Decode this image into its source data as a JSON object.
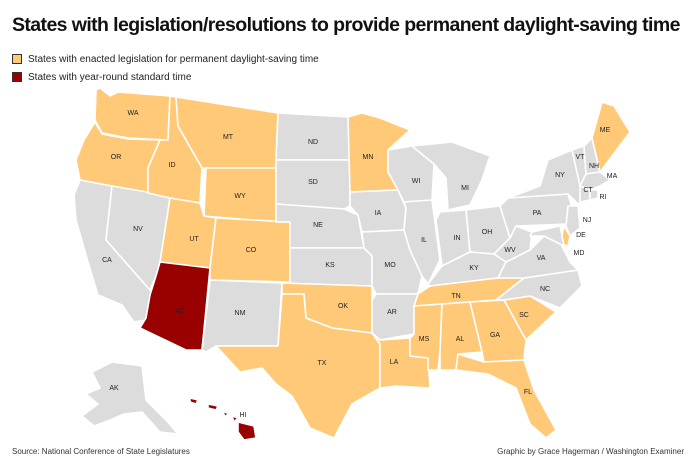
{
  "title": "States with legislation/resolutions to provide permanent daylight-saving time",
  "legend": [
    {
      "label": "States with enacted legislation for permanent daylight-saving time",
      "color": "#FFC978"
    },
    {
      "label": "States with year-round standard time",
      "color": "#990000"
    }
  ],
  "colors": {
    "dst": "#FFC978",
    "standard": "#990000",
    "other": "#DCDCDC"
  },
  "states": {
    "WA": {
      "label": "WA",
      "status": "dst"
    },
    "OR": {
      "label": "OR",
      "status": "dst"
    },
    "CA": {
      "label": "CA",
      "status": "other"
    },
    "NV": {
      "label": "NV",
      "status": "other"
    },
    "ID": {
      "label": "ID",
      "status": "dst"
    },
    "MT": {
      "label": "MT",
      "status": "dst"
    },
    "WY": {
      "label": "WY",
      "status": "dst"
    },
    "UT": {
      "label": "UT",
      "status": "dst"
    },
    "CO": {
      "label": "CO",
      "status": "dst"
    },
    "AZ": {
      "label": "AZ",
      "status": "standard"
    },
    "NM": {
      "label": "NM",
      "status": "other"
    },
    "ND": {
      "label": "ND",
      "status": "other"
    },
    "SD": {
      "label": "SD",
      "status": "other"
    },
    "NE": {
      "label": "NE",
      "status": "other"
    },
    "KS": {
      "label": "KS",
      "status": "other"
    },
    "OK": {
      "label": "OK",
      "status": "dst"
    },
    "TX": {
      "label": "TX",
      "status": "dst"
    },
    "MN": {
      "label": "MN",
      "status": "dst"
    },
    "IA": {
      "label": "IA",
      "status": "other"
    },
    "MO": {
      "label": "MO",
      "status": "other"
    },
    "AR": {
      "label": "AR",
      "status": "other"
    },
    "LA": {
      "label": "LA",
      "status": "dst"
    },
    "WI": {
      "label": "WI",
      "status": "other"
    },
    "IL": {
      "label": "IL",
      "status": "other"
    },
    "MI": {
      "label": "MI",
      "status": "other"
    },
    "IN": {
      "label": "IN",
      "status": "other"
    },
    "OH": {
      "label": "OH",
      "status": "other"
    },
    "KY": {
      "label": "KY",
      "status": "other"
    },
    "TN": {
      "label": "TN",
      "status": "dst"
    },
    "MS": {
      "label": "MS",
      "status": "dst"
    },
    "AL": {
      "label": "AL",
      "status": "dst"
    },
    "GA": {
      "label": "GA",
      "status": "dst"
    },
    "FL": {
      "label": "FL",
      "status": "dst"
    },
    "SC": {
      "label": "SC",
      "status": "dst"
    },
    "NC": {
      "label": "NC",
      "status": "other"
    },
    "VA": {
      "label": "VA",
      "status": "other"
    },
    "WV": {
      "label": "WV",
      "status": "other"
    },
    "PA": {
      "label": "PA",
      "status": "other"
    },
    "NY": {
      "label": "NY",
      "status": "other"
    },
    "VT": {
      "label": "VT",
      "status": "other"
    },
    "NH": {
      "label": "NH",
      "status": "other"
    },
    "ME": {
      "label": "ME",
      "status": "dst"
    },
    "MA": {
      "label": "MA",
      "status": "other"
    },
    "CT": {
      "label": "CT",
      "status": "other"
    },
    "RI": {
      "label": "RI",
      "status": "other"
    },
    "NJ": {
      "label": "NJ",
      "status": "other"
    },
    "DE": {
      "label": "DE",
      "status": "dst"
    },
    "MD": {
      "label": "MD",
      "status": "other"
    },
    "AK": {
      "label": "AK",
      "status": "other"
    },
    "HI": {
      "label": "HI",
      "status": "standard"
    }
  },
  "footer": {
    "source": "Source: National Conference of State Legislatures",
    "credit": "Graphic by Grace Hagerman / Washington Examiner"
  }
}
